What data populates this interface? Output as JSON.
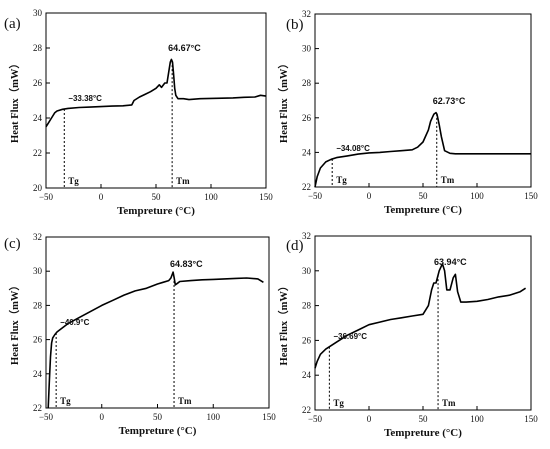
{
  "chart_data": [
    {
      "type": "line",
      "panel_label": "(a)",
      "xlabel": "Tempreture (°C)",
      "ylabel": "Heat Flux（mW）",
      "xlim": [
        -50,
        150
      ],
      "ylim": [
        20,
        30
      ],
      "xticks": [
        -50,
        0,
        50,
        100,
        150
      ],
      "yticks": [
        20,
        22,
        24,
        26,
        28,
        30
      ],
      "grid": false,
      "series": [
        {
          "x": [
            -50,
            -48,
            -45,
            -42,
            -40,
            -35,
            -30,
            -20,
            -10,
            0,
            10,
            20,
            28,
            30,
            35,
            40,
            45,
            50,
            53,
            55,
            58,
            60,
            62,
            63,
            64,
            65,
            66,
            67,
            68,
            70,
            75,
            80,
            90,
            100,
            110,
            120,
            130,
            140,
            145,
            150
          ],
          "y": [
            23.5,
            23.7,
            24.0,
            24.3,
            24.4,
            24.5,
            24.55,
            24.6,
            24.62,
            24.65,
            24.68,
            24.7,
            24.75,
            25.0,
            25.2,
            25.35,
            25.5,
            25.7,
            25.9,
            25.75,
            26.0,
            26.0,
            26.8,
            27.2,
            27.35,
            27.2,
            26.5,
            25.7,
            25.3,
            25.1,
            25.1,
            25.05,
            25.1,
            25.12,
            25.13,
            25.15,
            25.18,
            25.2,
            25.3,
            25.25
          ]
        }
      ],
      "markers": [
        {
          "x": -33.38,
          "label": "Tg",
          "value_label": "−33.38°C"
        },
        {
          "x": 64.67,
          "label": "Tm",
          "value_label": "64.67°C"
        }
      ]
    },
    {
      "type": "line",
      "panel_label": "(b)",
      "xlabel": "Tempreture (°C)",
      "ylabel": "Heat Flux（mW）",
      "xlim": [
        -50,
        150
      ],
      "ylim": [
        22,
        32
      ],
      "xticks": [
        -50,
        0,
        50,
        100,
        150
      ],
      "yticks": [
        22,
        24,
        26,
        28,
        30,
        32
      ],
      "grid": false,
      "series": [
        {
          "x": [
            -50,
            -48,
            -45,
            -40,
            -35,
            -30,
            -20,
            -10,
            0,
            10,
            20,
            30,
            40,
            45,
            50,
            55,
            57,
            60,
            62,
            63,
            65,
            67,
            70,
            75,
            80,
            90,
            100,
            110,
            120,
            130,
            140,
            150
          ],
          "y": [
            22.0,
            22.6,
            23.1,
            23.45,
            23.6,
            23.7,
            23.8,
            23.9,
            23.97,
            24.0,
            24.05,
            24.1,
            24.15,
            24.3,
            24.6,
            25.3,
            25.8,
            26.2,
            26.3,
            26.2,
            25.6,
            24.9,
            24.1,
            23.95,
            23.92,
            23.92,
            23.92,
            23.92,
            23.92,
            23.92,
            23.92,
            23.92
          ]
        }
      ],
      "markers": [
        {
          "x": -34.08,
          "label": "Tg",
          "value_label": "−34.08°C"
        },
        {
          "x": 62.73,
          "label": "Tm",
          "value_label": "62.73°C"
        }
      ]
    },
    {
      "type": "line",
      "panel_label": "(c)",
      "xlabel": "Tempreture (°C)",
      "ylabel": "Heat Flux（mW）",
      "xlim": [
        -50,
        150
      ],
      "ylim": [
        22,
        32
      ],
      "xticks": [
        -50,
        0,
        50,
        100,
        150
      ],
      "yticks": [
        22,
        24,
        26,
        28,
        30,
        32
      ],
      "grid": false,
      "series": [
        {
          "x": [
            -48,
            -47,
            -46,
            -45,
            -44,
            -42,
            -40,
            -35,
            -30,
            -20,
            -10,
            0,
            10,
            20,
            30,
            40,
            50,
            55,
            60,
            62,
            64,
            65,
            66,
            68,
            70,
            80,
            90,
            100,
            110,
            120,
            130,
            140,
            145
          ],
          "y": [
            22.0,
            23.5,
            25.0,
            25.8,
            26.1,
            26.3,
            26.45,
            26.7,
            26.95,
            27.3,
            27.65,
            28.0,
            28.3,
            28.6,
            28.85,
            29.0,
            29.25,
            29.35,
            29.45,
            29.6,
            29.95,
            29.6,
            29.2,
            29.3,
            29.4,
            29.45,
            29.5,
            29.52,
            29.55,
            29.58,
            29.6,
            29.55,
            29.35
          ]
        }
      ],
      "markers": [
        {
          "x": -40.9,
          "label": "Tg",
          "value_label": "−40.9°C"
        },
        {
          "x": 64.83,
          "label": "Tm",
          "value_label": "64.83°C"
        }
      ]
    },
    {
      "type": "line",
      "panel_label": "(d)",
      "xlabel": "Tempreture (°C)",
      "ylabel": "Heat Flux（mW）",
      "xlim": [
        -50,
        150
      ],
      "ylim": [
        22,
        32
      ],
      "xticks": [
        -50,
        0,
        50,
        100,
        150
      ],
      "yticks": [
        22,
        24,
        26,
        28,
        30,
        32
      ],
      "grid": false,
      "series": [
        {
          "x": [
            -50,
            -48,
            -45,
            -40,
            -35,
            -30,
            -20,
            -10,
            0,
            10,
            20,
            30,
            40,
            50,
            55,
            58,
            60,
            62,
            65,
            68,
            70,
            72,
            75,
            78,
            80,
            82,
            85,
            90,
            100,
            110,
            120,
            130,
            140,
            145
          ],
          "y": [
            24.4,
            24.8,
            25.2,
            25.5,
            25.7,
            25.9,
            26.3,
            26.6,
            26.9,
            27.05,
            27.2,
            27.3,
            27.4,
            27.5,
            28.0,
            28.9,
            29.3,
            29.3,
            30.0,
            30.4,
            30.0,
            28.9,
            28.9,
            29.6,
            29.8,
            28.8,
            28.2,
            28.2,
            28.25,
            28.35,
            28.5,
            28.6,
            28.8,
            29.0
          ]
        }
      ],
      "markers": [
        {
          "x": -36.69,
          "label": "Tg",
          "value_label": "−36.69°C"
        },
        {
          "x": 63.94,
          "label": "Tm",
          "value_label": "63.94°C"
        }
      ]
    }
  ]
}
